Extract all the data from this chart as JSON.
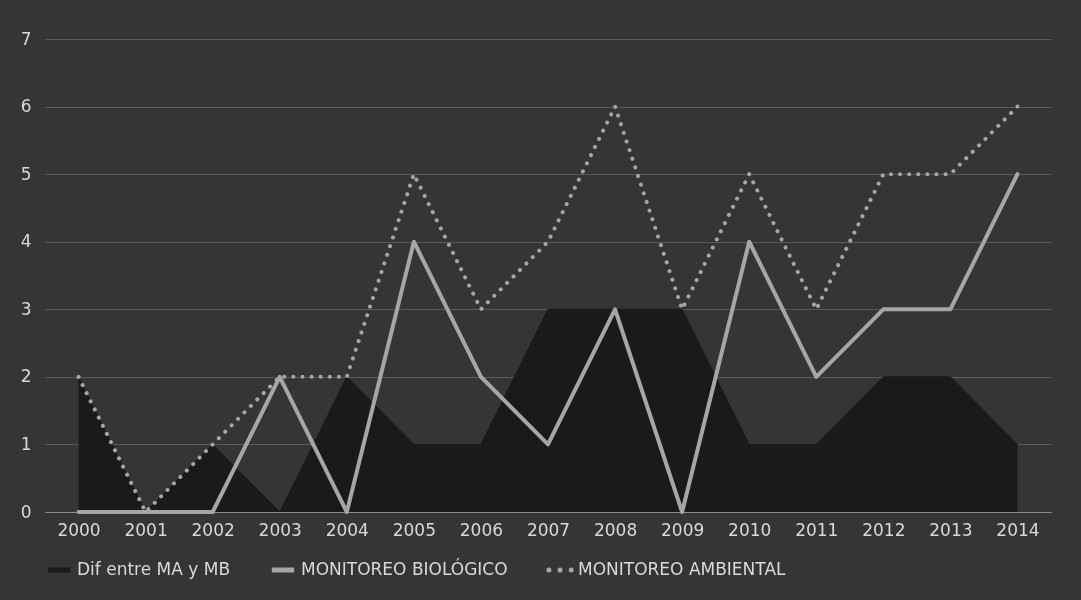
{
  "chart_data": {
    "type": "line",
    "categories": [
      "2000",
      "2001",
      "2002",
      "2003",
      "2004",
      "2005",
      "2006",
      "2007",
      "2008",
      "2009",
      "2010",
      "2011",
      "2012",
      "2013",
      "2014"
    ],
    "series": [
      {
        "name": "Dif entre MA y MB",
        "type": "area",
        "color": "#1a1a1a",
        "values": [
          2,
          0,
          1,
          0,
          2,
          1,
          1,
          3,
          3,
          3,
          1,
          1,
          2,
          2,
          1
        ]
      },
      {
        "name": "MONITOREO BIOLÓGICO",
        "type": "line",
        "line_style": "solid",
        "color": "#a6a6a6",
        "values": [
          0,
          0,
          0,
          2,
          0,
          4,
          2,
          1,
          3,
          0,
          4,
          2,
          3,
          3,
          5
        ]
      },
      {
        "name": "MONITOREO AMBIENTAL",
        "type": "line",
        "line_style": "dotted",
        "color": "#a6a6a6",
        "values": [
          2,
          0,
          1,
          2,
          2,
          5,
          3,
          4,
          6,
          3,
          5,
          3,
          5,
          5,
          6
        ]
      }
    ],
    "ylim": [
      0,
      7
    ],
    "yticks": [
      0,
      1,
      2,
      3,
      4,
      5,
      6,
      7
    ],
    "grid": "y",
    "legend": "bottom"
  }
}
